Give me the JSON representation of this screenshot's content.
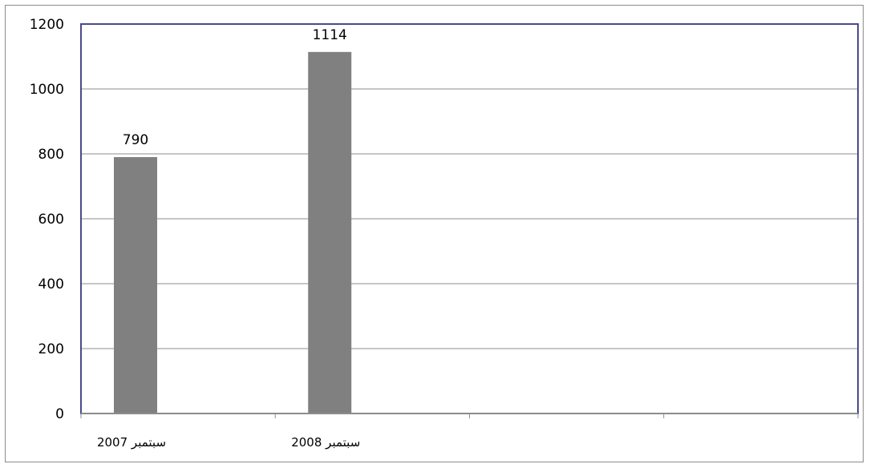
{
  "chart_data": {
    "type": "bar",
    "categories": [
      "سبتمبر 2007",
      "سبتمبر 2008",
      "",
      ""
    ],
    "values": [
      790,
      1114,
      null,
      null
    ],
    "data_labels": [
      "790",
      "1114",
      "",
      ""
    ],
    "ylim": [
      0,
      1200
    ],
    "yticks": [
      0,
      200,
      400,
      600,
      800,
      1000,
      1200
    ],
    "ytick_labels": [
      "0",
      "200",
      "400",
      "600",
      "800",
      "1000",
      "1200"
    ],
    "grid": true,
    "legend": "none",
    "bar_color": "#808080",
    "grid_color": "#8c8c8c",
    "plot_border_color": "#4a4a8c",
    "title": "",
    "xlabel": "",
    "ylabel": ""
  }
}
